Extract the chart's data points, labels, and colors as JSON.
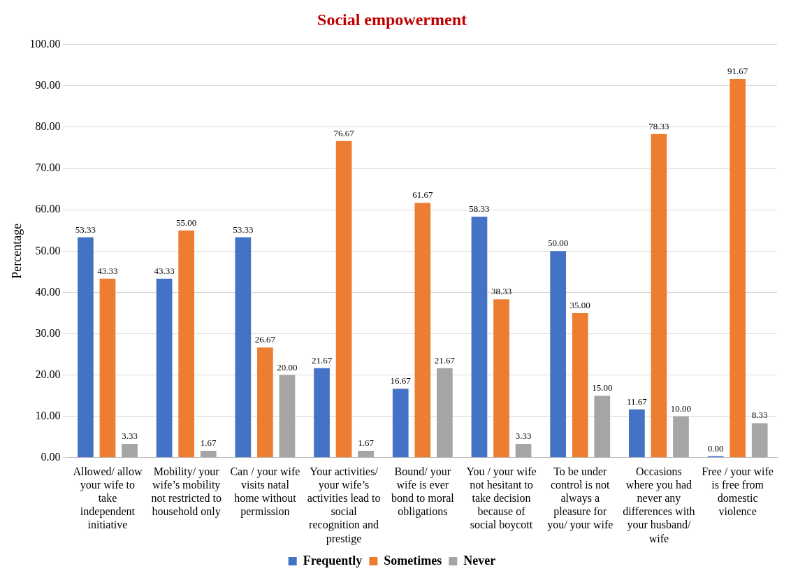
{
  "chart_data": {
    "type": "bar",
    "title": "Social empowerment",
    "ylabel": "Percentage",
    "categories": [
      "Allowed/ allow your wife to take independent initiative",
      "Mobility/ your wife’s mobility not restricted to household only",
      "Can / your wife visits natal home without permission",
      "Your activities/ your wife’s activities lead to social recognition and prestige",
      "Bound/ your wife is ever bond to moral obligations",
      "You / your wife not hesitant to take decision because of social boycott",
      "To be under control is not always a pleasure for you/ your wife",
      "Occasions where you had never any differences with your husband/ wife",
      "Free / your wife is free from domestic violence"
    ],
    "series": [
      {
        "name": "Frequently",
        "color": "#4472c4",
        "values": [
          53.33,
          43.33,
          53.33,
          21.67,
          16.67,
          58.33,
          50.0,
          11.67,
          0.0
        ],
        "value_labels": [
          "53.33",
          "43.33",
          "53.33",
          "21.67",
          "16.67",
          "58.33",
          "50.00",
          "11.67",
          "0.00"
        ]
      },
      {
        "name": "Sometimes",
        "color": "#ed7d31",
        "values": [
          43.33,
          55.0,
          26.67,
          76.67,
          61.67,
          38.33,
          35.0,
          78.33,
          91.67
        ],
        "value_labels": [
          "43.33",
          "55.00",
          "26.67",
          "76.67",
          "61.67",
          "38.33",
          "35.00",
          "78.33",
          "91.67"
        ]
      },
      {
        "name": "Never",
        "color": "#a5a5a5",
        "values": [
          3.33,
          1.67,
          20.0,
          1.67,
          21.67,
          3.33,
          15.0,
          10.0,
          8.33
        ],
        "value_labels": [
          "3.33",
          "1.67",
          "20.00",
          "1.67",
          "21.67",
          "3.33",
          "15.00",
          "10.00",
          "8.33"
        ]
      }
    ],
    "ylim": [
      0,
      100
    ],
    "yticks": [
      {
        "value": 0,
        "label": "0.00"
      },
      {
        "value": 10,
        "label": "10.00"
      },
      {
        "value": 20,
        "label": "20.00"
      },
      {
        "value": 30,
        "label": "30.00"
      },
      {
        "value": 40,
        "label": "40.00"
      },
      {
        "value": 50,
        "label": "50.00"
      },
      {
        "value": 60,
        "label": "60.00"
      },
      {
        "value": 70,
        "label": "70.00"
      },
      {
        "value": 80,
        "label": "80.00"
      },
      {
        "value": 90,
        "label": "90.00"
      },
      {
        "value": 100,
        "label": "100.00"
      }
    ],
    "grid": "y",
    "legend": "bottom"
  }
}
